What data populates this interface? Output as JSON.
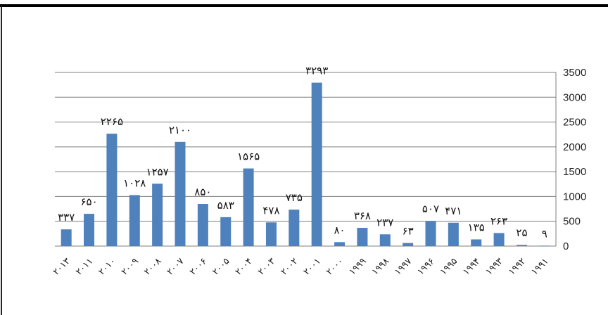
{
  "chart_data": {
    "type": "bar",
    "title": "",
    "xlabel": "",
    "ylabel": "",
    "ylim": [
      0,
      3500
    ],
    "y_ticks": [
      "0",
      "500",
      "1000",
      "1500",
      "2000",
      "2500",
      "3000",
      "3500"
    ],
    "y_axis_side": "right",
    "grid": true,
    "legend": "none",
    "bar_color": "#4f81bd",
    "frame_color": "#000000",
    "categories": [
      "۲۰۱۳",
      "۲۰۱۱",
      "۲۰۱۰",
      "۲۰۰۹",
      "۲۰۰۸",
      "۲۰۰۷",
      "۲۰۰۶",
      "۲۰۰۵",
      "۲۰۰۴",
      "۲۰۰۳",
      "۲۰۰۲",
      "۲۰۰۱",
      "۲۰۰۰",
      "۱۹۹۹",
      "۱۹۹۸",
      "۱۹۹۷",
      "۱۹۹۶",
      "۱۹۹۵",
      "۱۹۹۴",
      "۱۹۹۳",
      "۱۹۹۲",
      "۱۹۹۱"
    ],
    "values": [
      337,
      650,
      2265,
      1028,
      1257,
      2100,
      850,
      583,
      1565,
      478,
      735,
      3293,
      80,
      368,
      237,
      63,
      507,
      471,
      135,
      263,
      25,
      9
    ],
    "data_labels": [
      "۳۳۷",
      "۶۵۰",
      "۲۲۶۵",
      "۱۰۲۸",
      "۱۲۵۷",
      "۲۱۰۰",
      "۸۵۰",
      "۵۸۳",
      "۱۵۶۵",
      "۴۷۸",
      "۷۳۵",
      "۳۲۹۳",
      "۸۰",
      "۳۶۸",
      "۲۳۷",
      "۶۳",
      "۵۰۷",
      "۴۷۱",
      "۱۳۵",
      "۲۶۳",
      "۲۵",
      "۹"
    ]
  }
}
